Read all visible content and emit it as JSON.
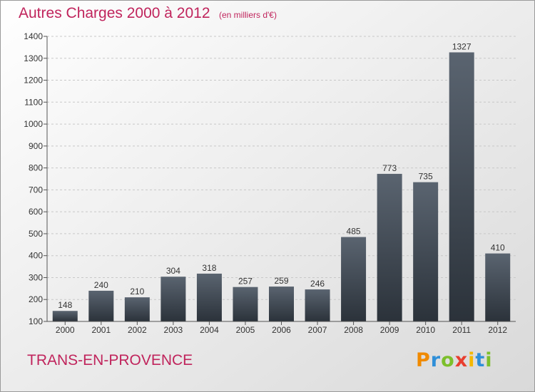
{
  "title": "Autres Charges 2000 à 2012",
  "subtitle": "(en milliers d'€)",
  "location": "TRANS-EN-PROVENCE",
  "logo": {
    "text": "Proxiti",
    "letters": [
      "P",
      "r",
      "o",
      "x",
      "i",
      "t",
      "i"
    ],
    "colors": [
      "#f08a00",
      "#2f8fd8",
      "#7cbf2b",
      "#e83e2f",
      "#f5b800",
      "#2f8fd8",
      "#7cbf2b"
    ]
  },
  "colors": {
    "accent": "#c0245c",
    "bar_top": "#5a6470",
    "bar_bottom": "#2b323a",
    "grid": "#c8c8c8",
    "axis": "#555555"
  },
  "chart_data": {
    "type": "bar",
    "title": "Autres Charges 2000 à 2012",
    "subtitle": "(en milliers d'€)",
    "categories": [
      "2000",
      "2001",
      "2002",
      "2003",
      "2004",
      "2005",
      "2006",
      "2007",
      "2008",
      "2009",
      "2010",
      "2011",
      "2012"
    ],
    "values": [
      148,
      240,
      210,
      304,
      318,
      257,
      259,
      246,
      485,
      773,
      735,
      1327,
      410
    ],
    "ylim": [
      100,
      1400
    ],
    "yticks": [
      100,
      200,
      300,
      400,
      500,
      600,
      700,
      800,
      900,
      1000,
      1100,
      1200,
      1300,
      1400
    ],
    "grid": true,
    "legend": "none"
  }
}
